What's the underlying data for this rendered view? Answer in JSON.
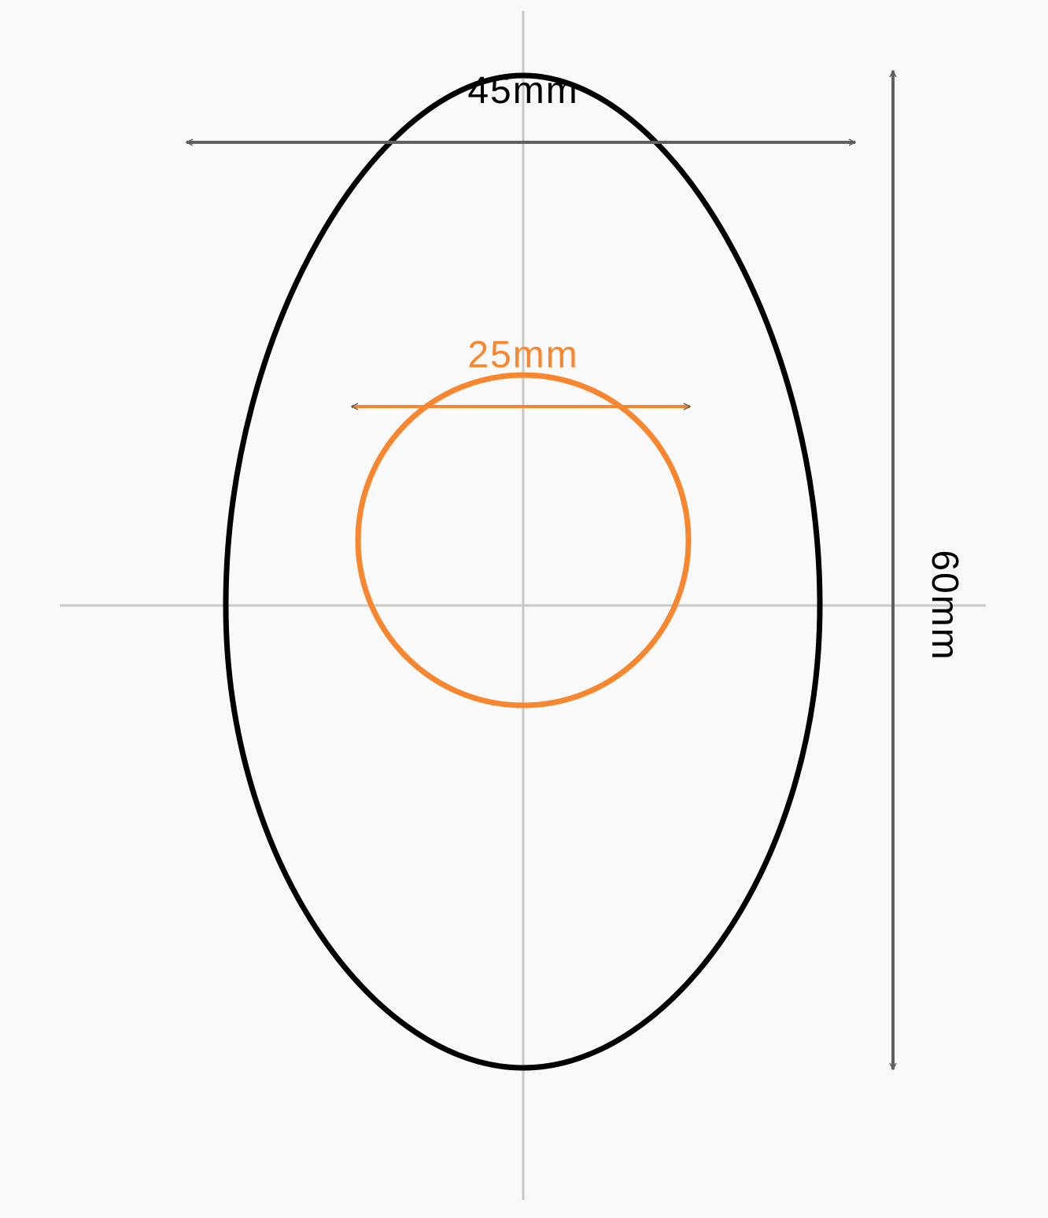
{
  "diagram": {
    "outer_width": {
      "label": "45mm",
      "value_mm": 45
    },
    "outer_height": {
      "label": "60mm",
      "value_mm": 60
    },
    "inner_diameter": {
      "label": "25mm",
      "value_mm": 25
    }
  },
  "colors": {
    "background": "#f9f9f9",
    "outline": "#000000",
    "accent": "#f7862e",
    "dimension_line": "#5f5f5f",
    "center_line": "#c8c8c8"
  }
}
